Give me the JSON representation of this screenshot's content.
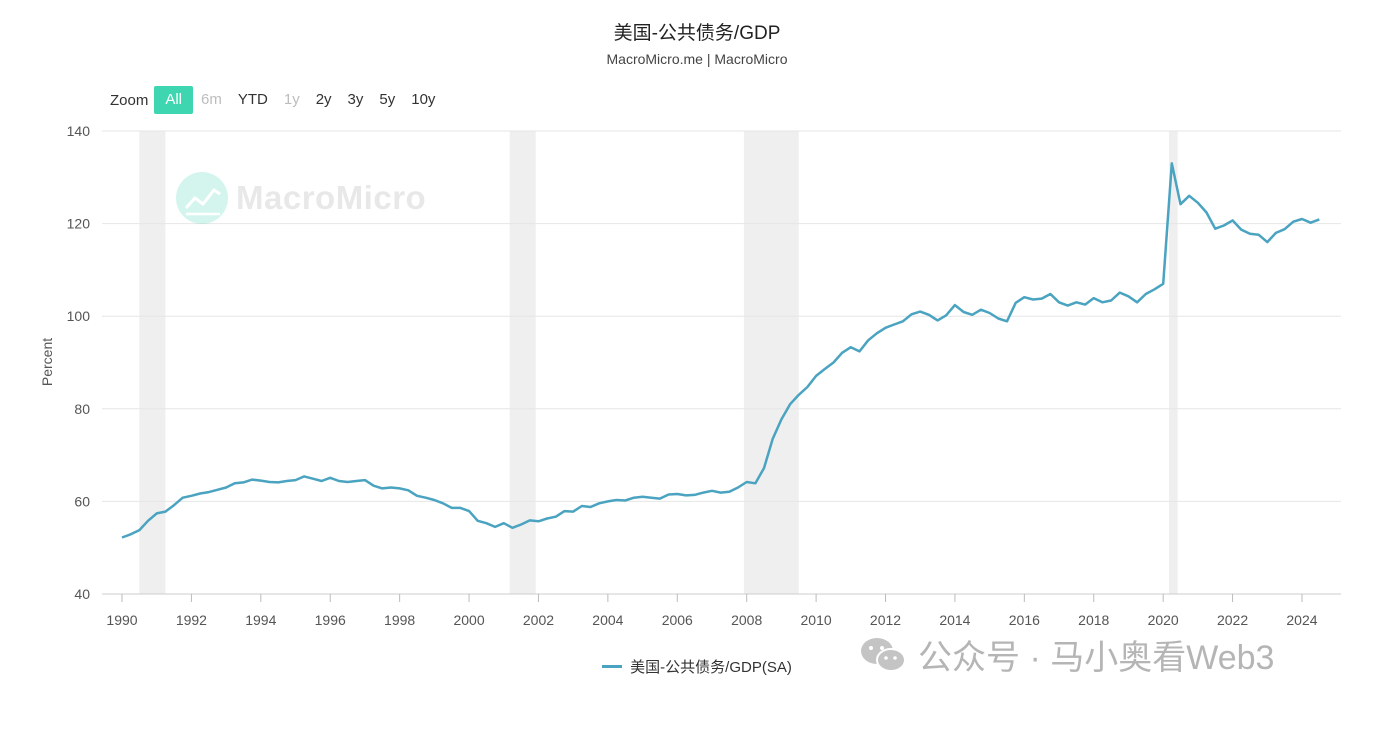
{
  "header": {
    "title": "美国-公共债务/GDP",
    "subtitle": "MacroMicro.me | MacroMicro"
  },
  "zoom": {
    "label": "Zoom",
    "buttons": [
      {
        "label": "All",
        "state": "active"
      },
      {
        "label": "6m",
        "state": "disabled"
      },
      {
        "label": "YTD",
        "state": "normal"
      },
      {
        "label": "1y",
        "state": "disabled"
      },
      {
        "label": "2y",
        "state": "normal"
      },
      {
        "label": "3y",
        "state": "normal"
      },
      {
        "label": "5y",
        "state": "normal"
      },
      {
        "label": "10y",
        "state": "normal"
      }
    ]
  },
  "watermark": {
    "text": "MacroMicro",
    "icon": "chart-logo-icon"
  },
  "overlay": {
    "text": "公众号 · 马小奥看Web3",
    "icon": "wechat-icon"
  },
  "legend": {
    "label": "美国-公共债务/GDP(SA)"
  },
  "colors": {
    "line": "#4aa3c0",
    "accent": "#3ed6b0",
    "recession": "#efefef",
    "grid": "#e6e6e6"
  },
  "chart_data": {
    "type": "line",
    "title": "美国-公共债务/GDP",
    "ylabel": "Percent",
    "xlabel": "",
    "xlim": [
      1990,
      2024.75
    ],
    "ylim": [
      40,
      140
    ],
    "yticks": [
      40,
      60,
      80,
      100,
      120,
      140
    ],
    "xticks": [
      1990,
      1992,
      1994,
      1996,
      1998,
      2000,
      2002,
      2004,
      2006,
      2008,
      2010,
      2012,
      2014,
      2016,
      2018,
      2020,
      2022,
      2024
    ],
    "grid": true,
    "legend_position": "bottom-center",
    "recessions": [
      [
        1990.5,
        1991.25
      ],
      [
        2001.17,
        2001.92
      ],
      [
        2007.92,
        2009.5
      ],
      [
        2020.17,
        2020.42
      ]
    ],
    "series": [
      {
        "name": "美国-公共债务/GDP(SA)",
        "x": [
          1990.0,
          1990.25,
          1990.5,
          1990.75,
          1991.0,
          1991.25,
          1991.5,
          1991.75,
          1992.0,
          1992.25,
          1992.5,
          1992.75,
          1993.0,
          1993.25,
          1993.5,
          1993.75,
          1994.0,
          1994.25,
          1994.5,
          1994.75,
          1995.0,
          1995.25,
          1995.5,
          1995.75,
          1996.0,
          1996.25,
          1996.5,
          1996.75,
          1997.0,
          1997.25,
          1997.5,
          1997.75,
          1998.0,
          1998.25,
          1998.5,
          1998.75,
          1999.0,
          1999.25,
          1999.5,
          1999.75,
          2000.0,
          2000.25,
          2000.5,
          2000.75,
          2001.0,
          2001.25,
          2001.5,
          2001.75,
          2002.0,
          2002.25,
          2002.5,
          2002.75,
          2003.0,
          2003.25,
          2003.5,
          2003.75,
          2004.0,
          2004.25,
          2004.5,
          2004.75,
          2005.0,
          2005.25,
          2005.5,
          2005.75,
          2006.0,
          2006.25,
          2006.5,
          2006.75,
          2007.0,
          2007.25,
          2007.5,
          2007.75,
          2008.0,
          2008.25,
          2008.5,
          2008.75,
          2009.0,
          2009.25,
          2009.5,
          2009.75,
          2010.0,
          2010.25,
          2010.5,
          2010.75,
          2011.0,
          2011.25,
          2011.5,
          2011.75,
          2012.0,
          2012.25,
          2012.5,
          2012.75,
          2013.0,
          2013.25,
          2013.5,
          2013.75,
          2014.0,
          2014.25,
          2014.5,
          2014.75,
          2015.0,
          2015.25,
          2015.5,
          2015.75,
          2016.0,
          2016.25,
          2016.5,
          2016.75,
          2017.0,
          2017.25,
          2017.5,
          2017.75,
          2018.0,
          2018.25,
          2018.5,
          2018.75,
          2019.0,
          2019.25,
          2019.5,
          2019.75,
          2020.0,
          2020.25,
          2020.5,
          2020.75,
          2021.0,
          2021.25,
          2021.5,
          2021.75,
          2022.0,
          2022.25,
          2022.5,
          2022.75,
          2023.0,
          2023.25,
          2023.5,
          2023.75,
          2024.0,
          2024.25,
          2024.5
        ],
        "values": [
          52.2,
          52.9,
          53.8,
          55.8,
          57.4,
          57.8,
          59.2,
          60.8,
          61.2,
          61.7,
          62.0,
          62.5,
          63.0,
          63.9,
          64.1,
          64.7,
          64.5,
          64.2,
          64.1,
          64.4,
          64.6,
          65.4,
          64.9,
          64.4,
          65.1,
          64.4,
          64.2,
          64.4,
          64.6,
          63.4,
          62.8,
          63.0,
          62.8,
          62.4,
          61.2,
          60.8,
          60.3,
          59.6,
          58.6,
          58.6,
          57.9,
          55.8,
          55.3,
          54.5,
          55.3,
          54.3,
          55.0,
          55.9,
          55.7,
          56.3,
          56.7,
          57.9,
          57.8,
          59.0,
          58.8,
          59.6,
          60.0,
          60.3,
          60.2,
          60.8,
          61.0,
          60.8,
          60.6,
          61.5,
          61.6,
          61.3,
          61.4,
          61.9,
          62.3,
          61.9,
          62.1,
          63.0,
          64.2,
          63.9,
          67.2,
          73.5,
          77.7,
          81.0,
          83.0,
          84.7,
          87.1,
          88.6,
          90.0,
          92.1,
          93.3,
          92.4,
          94.8,
          96.3,
          97.5,
          98.2,
          98.9,
          100.4,
          101.0,
          100.3,
          99.1,
          100.2,
          102.4,
          100.9,
          100.3,
          101.4,
          100.7,
          99.5,
          98.9,
          102.9,
          104.1,
          103.6,
          103.8,
          104.8,
          103.0,
          102.3,
          103.0,
          102.5,
          103.9,
          103.0,
          103.4,
          105.1,
          104.3,
          103.0,
          104.8,
          105.8,
          107.0,
          133.0,
          124.2,
          126.0,
          124.5,
          122.4,
          118.9,
          119.6,
          120.7,
          118.7,
          117.8,
          117.6,
          116.0,
          118.0,
          118.8,
          120.4,
          121.0,
          120.2,
          120.9
        ]
      }
    ]
  }
}
